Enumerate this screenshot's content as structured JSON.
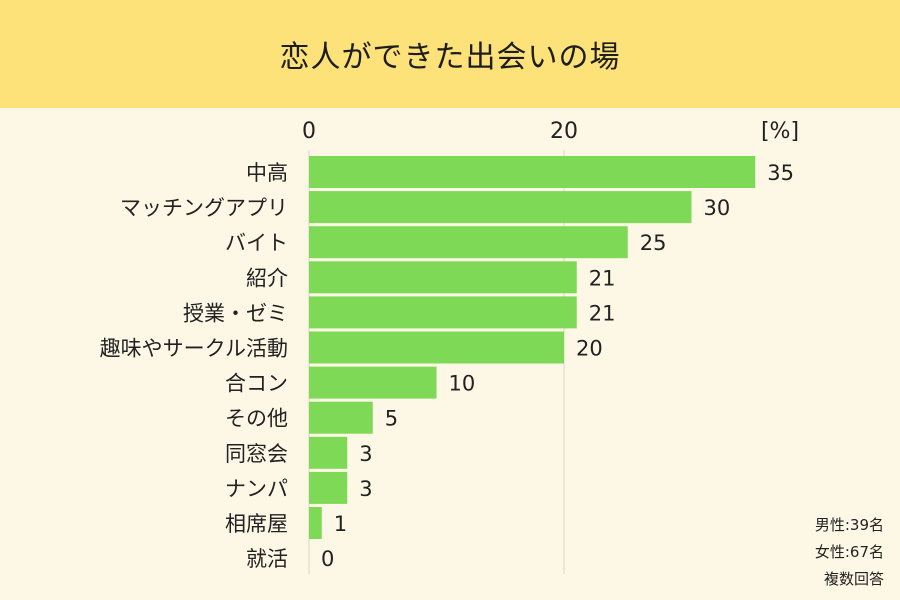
{
  "header": {
    "title": "恋人ができた出会いの場"
  },
  "notes": {
    "male": "男性:39名",
    "female": "女性:67名",
    "multiple": "複数回答"
  },
  "colors": {
    "background": "#fdf8e6",
    "title_band": "#fde27a",
    "bar": "#7ed957",
    "gridline": "#e6e0cc"
  },
  "chart_data": {
    "type": "bar",
    "orientation": "horizontal",
    "title": "恋人ができた出会いの場",
    "unit_label": "[%]",
    "xlim": [
      0,
      40
    ],
    "x_ticks": [
      "0",
      "20"
    ],
    "categories": [
      "中高",
      "マッチングアプリ",
      "バイト",
      "紹介",
      "授業・ゼミ",
      "趣味やサークル活動",
      "合コン",
      "その他",
      "同窓会",
      "ナンパ",
      "相席屋",
      "就活"
    ],
    "values": [
      35,
      30,
      25,
      21,
      21,
      20,
      10,
      5,
      3,
      3,
      1,
      0
    ],
    "value_labels": [
      "35",
      "30",
      "25",
      "21",
      "21",
      "20",
      "10",
      "5",
      "3",
      "3",
      "1",
      "0"
    ],
    "grid": true
  }
}
